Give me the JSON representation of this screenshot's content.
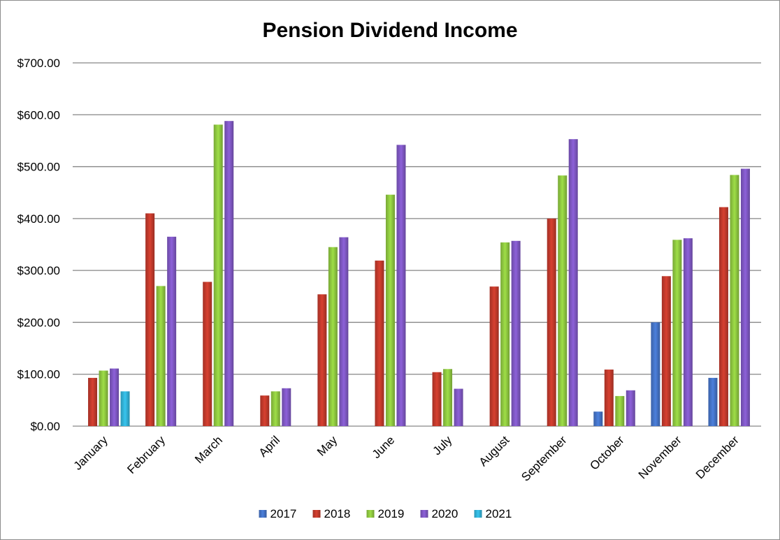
{
  "chart_data": {
    "type": "bar",
    "title": "Pension Dividend Income",
    "xlabel": "",
    "ylabel": "",
    "ylim": [
      0,
      700
    ],
    "y_ticks": [
      "$0.00",
      "$100.00",
      "$200.00",
      "$300.00",
      "$400.00",
      "$500.00",
      "$600.00",
      "$700.00"
    ],
    "y_tick_values": [
      0,
      100,
      200,
      300,
      400,
      500,
      600,
      700
    ],
    "grid": true,
    "legend_position": "bottom",
    "categories": [
      "January",
      "February",
      "March",
      "April",
      "May",
      "June",
      "July",
      "August",
      "September",
      "October",
      "November",
      "December"
    ],
    "series": [
      {
        "name": "2017",
        "color": "#4472c4",
        "values": [
          null,
          null,
          null,
          null,
          null,
          null,
          null,
          null,
          null,
          28,
          200,
          93
        ]
      },
      {
        "name": "2018",
        "color": "#c0392b",
        "values": [
          93,
          410,
          278,
          59,
          254,
          319,
          104,
          269,
          400,
          109,
          289,
          422
        ]
      },
      {
        "name": "2019",
        "color": "#8dc63f",
        "values": [
          107,
          270,
          581,
          67,
          345,
          446,
          110,
          354,
          483,
          58,
          359,
          484
        ]
      },
      {
        "name": "2020",
        "color": "#7e57c2",
        "values": [
          111,
          365,
          588,
          73,
          364,
          542,
          72,
          357,
          553,
          69,
          362,
          496
        ]
      },
      {
        "name": "2021",
        "color": "#31b0d5",
        "values": [
          67,
          null,
          null,
          null,
          null,
          null,
          null,
          null,
          null,
          null,
          null,
          null
        ]
      }
    ]
  }
}
